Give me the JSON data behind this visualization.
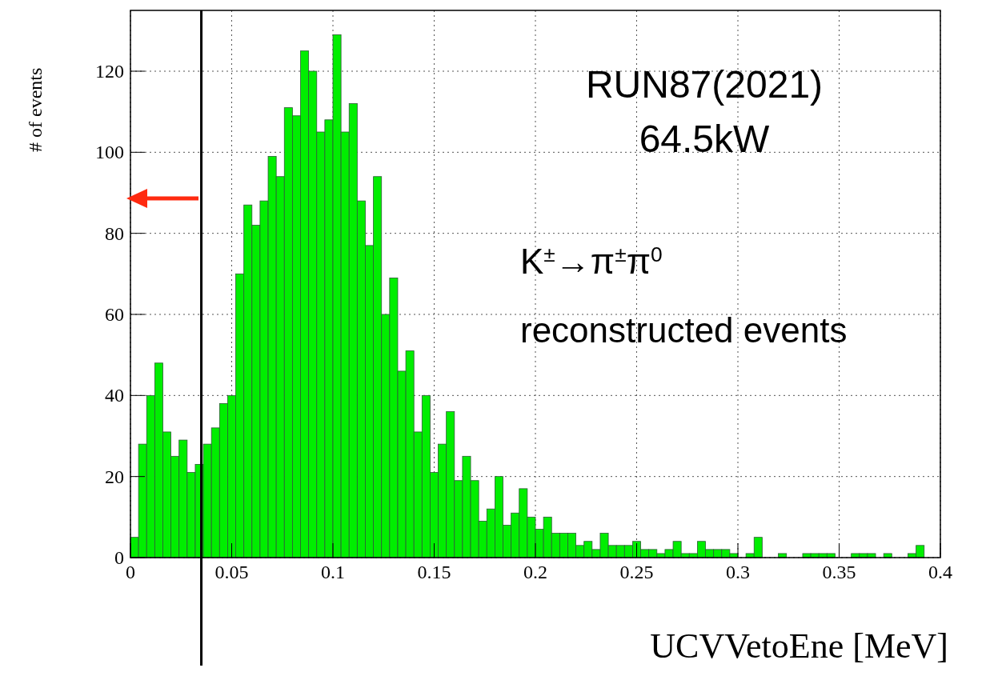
{
  "chart_data": {
    "type": "histogram",
    "xlabel": "UCVVetoEne [MeV]",
    "ylabel": "# of events",
    "bins": [
      0,
      0.004,
      0.008,
      0.012,
      0.016,
      0.02,
      0.024,
      0.028,
      0.032,
      0.036,
      0.04,
      0.044,
      0.048,
      0.052,
      0.056,
      0.06,
      0.064,
      0.068,
      0.072,
      0.076,
      0.08,
      0.084,
      0.088,
      0.092,
      0.096,
      0.1,
      0.104,
      0.108,
      0.112,
      0.116,
      0.12,
      0.124,
      0.128,
      0.132,
      0.136,
      0.14,
      0.144,
      0.148,
      0.152,
      0.156,
      0.16,
      0.164,
      0.168,
      0.172,
      0.176,
      0.18,
      0.184,
      0.188,
      0.192,
      0.196,
      0.2,
      0.204,
      0.208,
      0.212,
      0.216,
      0.22,
      0.224,
      0.228,
      0.232,
      0.236,
      0.24,
      0.244,
      0.248,
      0.252,
      0.256,
      0.26,
      0.264,
      0.268,
      0.272,
      0.276,
      0.28,
      0.284,
      0.288,
      0.292,
      0.296,
      0.3,
      0.304,
      0.308,
      0.312,
      0.316,
      0.32,
      0.324,
      0.328,
      0.332,
      0.336,
      0.34,
      0.344,
      0.348,
      0.352,
      0.356,
      0.36,
      0.364,
      0.368,
      0.372,
      0.376,
      0.38,
      0.384,
      0.388,
      0.392,
      0.396,
      0.4
    ],
    "values": [
      5,
      28,
      40,
      48,
      31,
      25,
      29,
      21,
      23,
      28,
      32,
      38,
      40,
      70,
      87,
      82,
      88,
      99,
      94,
      111,
      109,
      125,
      120,
      105,
      108,
      129,
      105,
      112,
      88,
      77,
      94,
      60,
      69,
      46,
      51,
      31,
      40,
      21,
      28,
      36,
      19,
      25,
      19,
      9,
      12,
      20,
      8,
      11,
      17,
      10,
      7,
      10,
      6,
      6,
      6,
      3,
      4,
      2,
      6,
      3,
      3,
      3,
      4,
      2,
      2,
      1,
      2,
      4,
      1,
      1,
      4,
      2,
      2,
      2,
      1,
      0,
      1,
      5,
      0,
      0,
      1,
      0,
      0,
      1,
      1,
      1,
      1,
      0,
      0,
      1,
      1,
      1,
      0,
      1,
      0,
      0,
      1,
      3,
      0,
      0
    ],
    "color": "#00ee00",
    "xlim": [
      0,
      0.4
    ],
    "xticks": [
      0,
      0.05,
      0.1,
      0.15,
      0.2,
      0.25,
      0.3,
      0.35,
      0.4
    ],
    "ylim": [
      0,
      135
    ],
    "yticks": [
      0,
      20,
      40,
      60,
      80,
      100,
      120
    ],
    "grid": true,
    "ref_lines": [
      {
        "axis": "x",
        "value": 0.035,
        "color": "#000000"
      }
    ],
    "annotations": [
      "RUN87(2021)",
      "64.5kW",
      "K$^{±}$→π$^{±}$π$^{0}$",
      "reconstructed events"
    ]
  }
}
